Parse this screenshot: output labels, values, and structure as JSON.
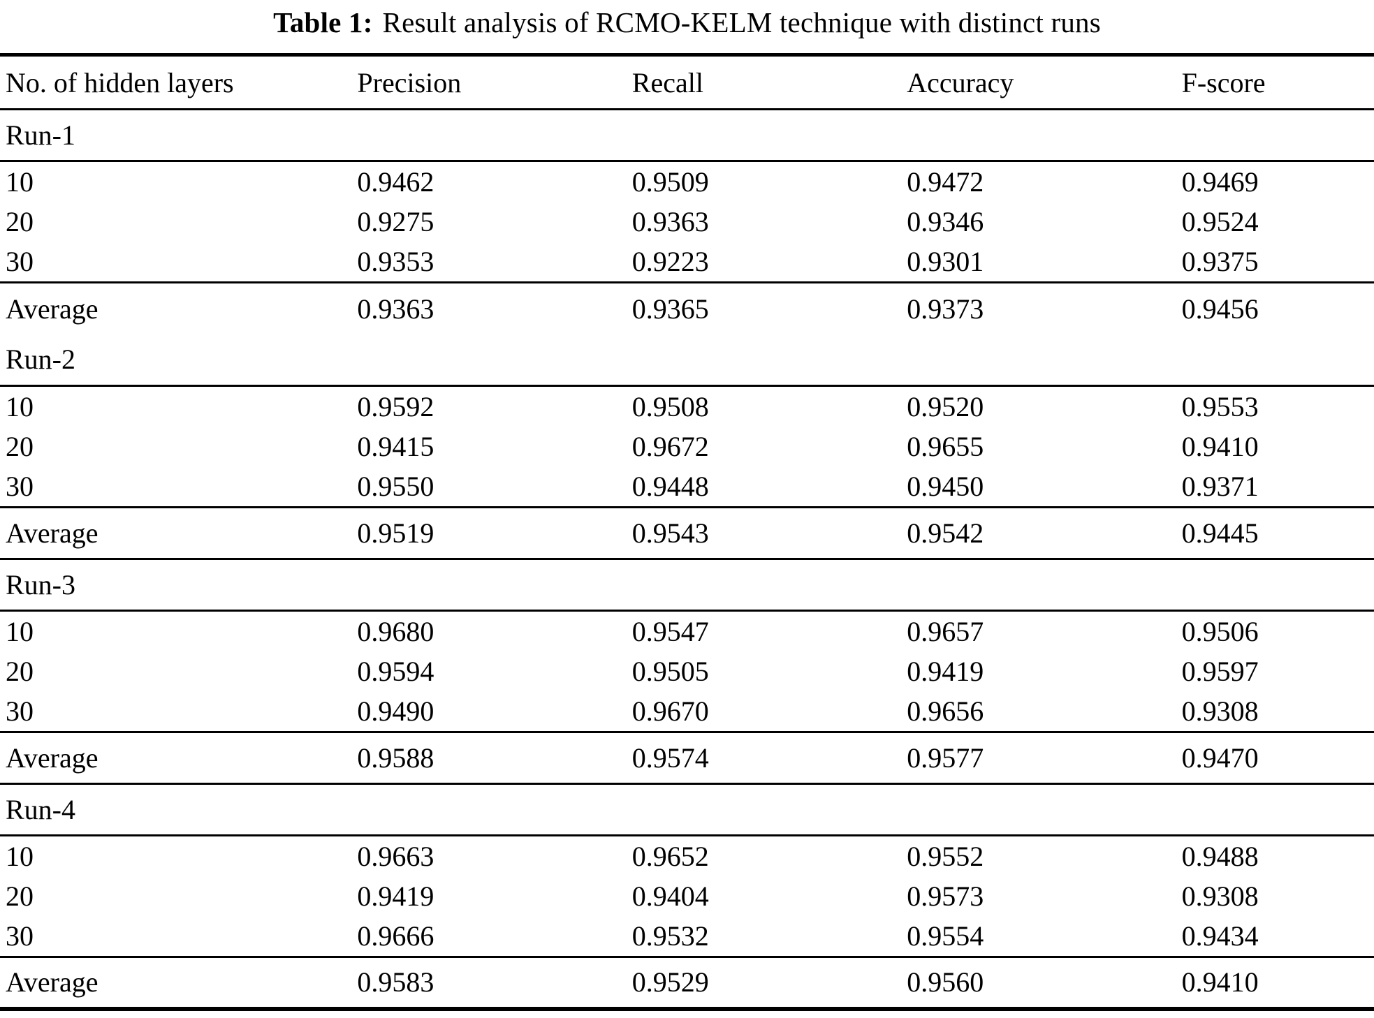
{
  "title": {
    "label": "Table 1:",
    "text": "Result analysis of RCMO-KELM technique with distinct runs"
  },
  "colors": {
    "text": "#000000",
    "background": "#ffffff",
    "rule": "#000000"
  },
  "table": {
    "columns": [
      "No. of hidden layers",
      "Precision",
      "Recall",
      "Accuracy",
      "F-score"
    ],
    "sections": [
      {
        "name": "Run-1",
        "top_rule": false,
        "rows": [
          [
            "10",
            "0.9462",
            "0.9509",
            "0.9472",
            "0.9469"
          ],
          [
            "20",
            "0.9275",
            "0.9363",
            "0.9346",
            "0.9524"
          ],
          [
            "30",
            "0.9353",
            "0.9223",
            "0.9301",
            "0.9375"
          ]
        ],
        "average": [
          "Average",
          "0.9363",
          "0.9365",
          "0.9373",
          "0.9456"
        ]
      },
      {
        "name": "Run-2",
        "top_rule": false,
        "rows": [
          [
            "10",
            "0.9592",
            "0.9508",
            "0.9520",
            "0.9553"
          ],
          [
            "20",
            "0.9415",
            "0.9672",
            "0.9655",
            "0.9410"
          ],
          [
            "30",
            "0.9550",
            "0.9448",
            "0.9450",
            "0.9371"
          ]
        ],
        "average": [
          "Average",
          "0.9519",
          "0.9543",
          "0.9542",
          "0.9445"
        ]
      },
      {
        "name": "Run-3",
        "top_rule": true,
        "rows": [
          [
            "10",
            "0.9680",
            "0.9547",
            "0.9657",
            "0.9506"
          ],
          [
            "20",
            "0.9594",
            "0.9505",
            "0.9419",
            "0.9597"
          ],
          [
            "30",
            "0.9490",
            "0.9670",
            "0.9656",
            "0.9308"
          ]
        ],
        "average": [
          "Average",
          "0.9588",
          "0.9574",
          "0.9577",
          "0.9470"
        ]
      },
      {
        "name": "Run-4",
        "top_rule": true,
        "rows": [
          [
            "10",
            "0.9663",
            "0.9652",
            "0.9552",
            "0.9488"
          ],
          [
            "20",
            "0.9419",
            "0.9404",
            "0.9573",
            "0.9308"
          ],
          [
            "30",
            "0.9666",
            "0.9532",
            "0.9554",
            "0.9434"
          ]
        ],
        "average": [
          "Average",
          "0.9583",
          "0.9529",
          "0.9560",
          "0.9410"
        ]
      }
    ]
  }
}
